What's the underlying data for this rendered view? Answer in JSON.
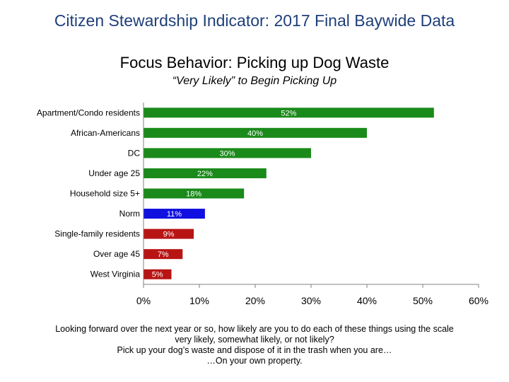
{
  "slide_title": "Citizen Stewardship Indicator: 2017 Final Baywide Data",
  "chart_data": {
    "type": "bar",
    "orientation": "horizontal",
    "title": "Focus Behavior: Picking up Dog Waste",
    "subtitle": "“Very Likely” to Begin Picking Up",
    "categories": [
      "Apartment/Condo residents",
      "African-Americans",
      "DC",
      "Under age 25",
      "Household size 5+",
      "Norm",
      "Single-family residents",
      "Over age 45",
      "West Virginia"
    ],
    "values": [
      52,
      40,
      30,
      22,
      18,
      11,
      9,
      7,
      5
    ],
    "data_labels": [
      "52%",
      "40%",
      "30%",
      "22%",
      "18%",
      "11%",
      "9%",
      "7%",
      "5%"
    ],
    "bar_colors": [
      "#1a8a1a",
      "#1a8a1a",
      "#1a8a1a",
      "#1a8a1a",
      "#1a8a1a",
      "#1010e0",
      "#b81414",
      "#b81414",
      "#b81414"
    ],
    "xlim": [
      0,
      60
    ],
    "x_ticks": [
      "0%",
      "10%",
      "20%",
      "30%",
      "40%",
      "50%",
      "60%"
    ],
    "grid": false,
    "legend": "none"
  },
  "footnote": [
    "Looking forward over the next year or so, how likely are you to do each of these things using the scale",
    "very likely, somewhat likely, or not likely?",
    "Pick up your dog’s waste and dispose of it in the trash when you are…",
    "…On your own property."
  ]
}
